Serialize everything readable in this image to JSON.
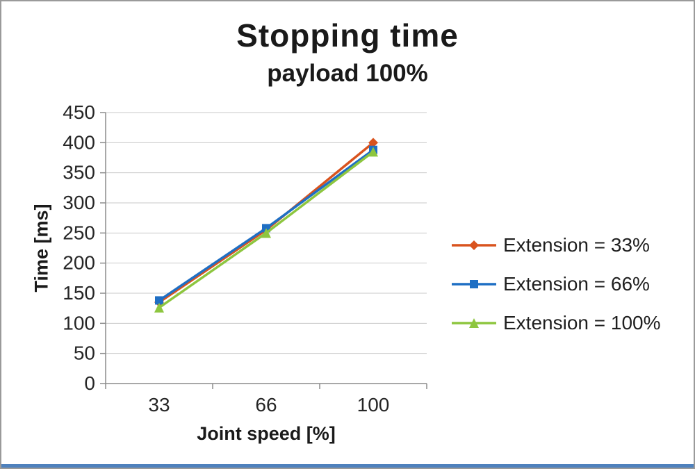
{
  "title": "Stopping time",
  "subtitle": "payload 100%",
  "accent_bottom_color": "#4f81bd",
  "chart_data": {
    "type": "line",
    "categories": [
      "33",
      "66",
      "100"
    ],
    "x": [
      33,
      66,
      100
    ],
    "series": [
      {
        "name": "Extension = 33%",
        "values": [
          135,
          255,
          400
        ],
        "color": "#d9531e",
        "marker": "diamond"
      },
      {
        "name": "Extension = 66%",
        "values": [
          138,
          258,
          388
        ],
        "color": "#1f6fc4",
        "marker": "square"
      },
      {
        "name": "Extension = 100%",
        "values": [
          126,
          250,
          385
        ],
        "color": "#8dc63f",
        "marker": "triangle"
      }
    ],
    "xlabel": "Joint speed [%]",
    "ylabel": "Time [ms]",
    "ylim": [
      0,
      450
    ],
    "yticks": [
      0,
      50,
      100,
      150,
      200,
      250,
      300,
      350,
      400,
      450
    ],
    "grid": true,
    "legend_position": "right"
  }
}
